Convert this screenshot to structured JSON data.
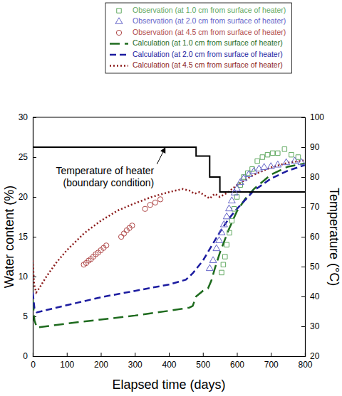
{
  "chart_data": {
    "type": "line",
    "xlabel": "Elapsed time (days)",
    "ylabel": "Water content (%)",
    "y2label": "Temperature (°C)",
    "xlim": [
      0,
      800
    ],
    "xticks": [
      0,
      100,
      200,
      300,
      400,
      500,
      600,
      700,
      800
    ],
    "ylim": [
      0,
      30
    ],
    "yticks": [
      0,
      5,
      10,
      15,
      20,
      25,
      30
    ],
    "y2lim": [
      20,
      100
    ],
    "y2ticks": [
      20,
      30,
      40,
      50,
      60,
      70,
      80,
      90,
      100
    ],
    "grid": false,
    "legend": "top",
    "series": [
      {
        "name": "Observation (at 1.0 cm from surface of heater)",
        "type": "scatter",
        "marker": "square",
        "color": "#5fa85f",
        "x": [
          555,
          560,
          565,
          570,
          578,
          585,
          592,
          600,
          610,
          620,
          632,
          645,
          660,
          675,
          690,
          705,
          720,
          740,
          760,
          780
        ],
        "values": [
          10.5,
          11.5,
          12.5,
          14,
          15.5,
          17,
          18.5,
          20,
          21.5,
          22.5,
          23,
          23.5,
          24.5,
          25,
          25.3,
          25.5,
          25.5,
          26,
          25.3,
          25
        ]
      },
      {
        "name": "Observation (at 2.0 cm from surface of heater)",
        "type": "scatter",
        "marker": "triangle",
        "color": "#6464c8",
        "x": [
          520,
          530,
          540,
          548,
          555,
          562,
          570,
          577,
          585,
          593,
          600,
          610,
          620,
          635,
          650,
          665,
          680,
          700,
          720,
          745,
          770,
          790
        ],
        "values": [
          11,
          12,
          13.5,
          14.5,
          15.5,
          16.5,
          17.5,
          18.5,
          19.5,
          20.5,
          21,
          21.8,
          22.3,
          22.8,
          23.2,
          23.5,
          23.7,
          23.8,
          24,
          24.3,
          24.5,
          24.3
        ]
      },
      {
        "name": "Observation (at 4.5 cm from surface of heater)",
        "type": "scatter",
        "marker": "circle",
        "color": "#b04a4a",
        "x": [
          150,
          157,
          164,
          171,
          178,
          185,
          192,
          200,
          208,
          216,
          260,
          268,
          276,
          284,
          292,
          330,
          345,
          360,
          375
        ],
        "values": [
          11.5,
          11.7,
          12,
          12.2,
          12.5,
          12.8,
          13,
          13.3,
          13.6,
          13.9,
          15,
          15.4,
          15.8,
          16.1,
          16.4,
          18.5,
          19,
          19.3,
          19.7
        ]
      },
      {
        "name": "Calculation (at 1.0 cm from surface of heater)",
        "type": "line",
        "line_style": "long-dash",
        "color": "#1e6b1e",
        "x": [
          0,
          5,
          12,
          50,
          100,
          200,
          300,
          400,
          460,
          470,
          480,
          500,
          515,
          525,
          535,
          550,
          575,
          600,
          625,
          650,
          700,
          750,
          800
        ],
        "values": [
          7,
          4.5,
          3.6,
          3.8,
          4.1,
          4.6,
          5.1,
          5.7,
          6.1,
          6.3,
          7.5,
          8.2,
          8.5,
          9.5,
          11,
          13,
          15.8,
          18.2,
          19.8,
          21,
          22.8,
          23.8,
          24.2
        ]
      },
      {
        "name": "Calculation (at 2.0 cm from surface of heater)",
        "type": "line",
        "line_style": "dash",
        "color": "#1c1ca0",
        "x": [
          0,
          5,
          12,
          50,
          100,
          200,
          300,
          400,
          450,
          470,
          500,
          525,
          550,
          575,
          600,
          650,
          700,
          750,
          800
        ],
        "values": [
          8,
          6,
          5.5,
          5.9,
          6.4,
          7.4,
          8.2,
          9,
          9.6,
          10.4,
          12,
          13.8,
          15.6,
          17.2,
          18.5,
          20.8,
          22.3,
          23.3,
          24
        ]
      },
      {
        "name": "Calculation (at 4.5 cm from surface of heater)",
        "type": "line",
        "line_style": "dot",
        "color": "#8b1a1a",
        "x": [
          0,
          4,
          10,
          20,
          40,
          70,
          100,
          150,
          200,
          250,
          300,
          350,
          400,
          440,
          460,
          475,
          490,
          505,
          520,
          535,
          550,
          575,
          600,
          650,
          700,
          750,
          800
        ],
        "values": [
          12,
          9,
          8,
          8.6,
          10,
          11.8,
          13.3,
          15.4,
          17,
          18.3,
          19.2,
          20,
          20.6,
          21,
          20.8,
          20.4,
          20.6,
          20.2,
          19.8,
          20.4,
          20,
          20.6,
          21.5,
          22.8,
          23.7,
          24.3,
          24.6
        ]
      },
      {
        "type": "line",
        "line_style": "solid",
        "color": "#000000",
        "axis": "y2",
        "x": [
          0,
          480,
          480,
          520,
          520,
          550,
          550,
          800
        ],
        "values": [
          90,
          90,
          87,
          87,
          80,
          80,
          75,
          75
        ]
      }
    ],
    "annotations": [
      {
        "text": [
          "Temperature of heater",
          "(boundary condition)"
        ],
        "x": 390,
        "y": 90,
        "axis": "y2"
      }
    ]
  }
}
